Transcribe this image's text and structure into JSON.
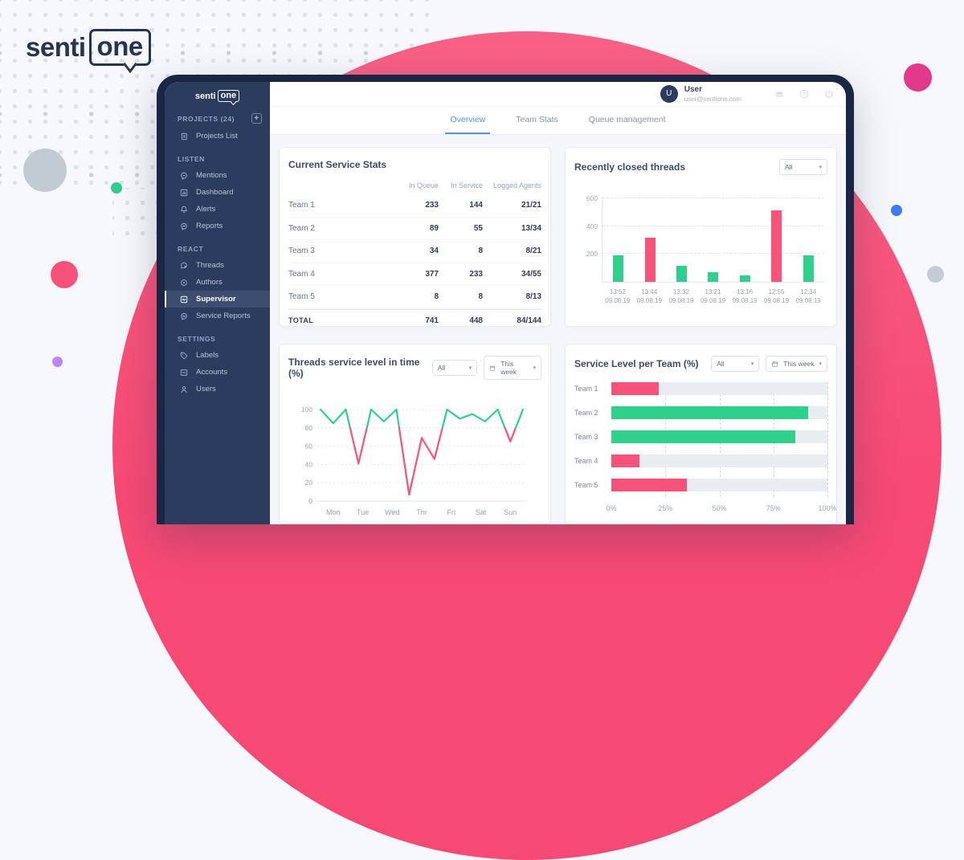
{
  "logo": {
    "senti": "senti",
    "one": "one"
  },
  "sidebar": {
    "projects_label": "PROJECTS (24)",
    "add_button": "+",
    "projects_list": "Projects List",
    "listen": "LISTEN",
    "mentions": "Mentions",
    "dashboard": "Dashboard",
    "alerts": "Alerts",
    "reports": "Reports",
    "react": "REACT",
    "threads": "Threads",
    "authors": "Authors",
    "supervisor": "Supervisor",
    "service_reports": "Service Reports",
    "settings": "SETTINGS",
    "labels": "Labels",
    "accounts": "Accounts",
    "users": "Users",
    "active_item": "Supervisor"
  },
  "userbar": {
    "initial": "U",
    "name": "User",
    "email": "user@sentione.com"
  },
  "tabs": {
    "overview": "Overview",
    "team_stats": "Team Stats",
    "queue": "Queue management",
    "active": "Overview"
  },
  "stats_card": {
    "title": "Current Service Stats",
    "columns": [
      "In Queue",
      "In Service",
      "Logged Agents"
    ],
    "rows": [
      {
        "name": "Team 1",
        "q": "233",
        "s": "144",
        "a": "21/21"
      },
      {
        "name": "Team 2",
        "q": "89",
        "s": "55",
        "a": "13/34"
      },
      {
        "name": "Team 3",
        "q": "34",
        "s": "8",
        "a": "8/21"
      },
      {
        "name": "Team 4",
        "q": "377",
        "s": "233",
        "a": "34/55"
      },
      {
        "name": "Team 5",
        "q": "8",
        "s": "8",
        "a": "8/13"
      },
      {
        "name": "TOTAL",
        "q": "741",
        "s": "448",
        "a": "84/144"
      }
    ]
  },
  "closed_card": {
    "title": "Recently closed threads",
    "filter": "All"
  },
  "level_time_card": {
    "title": "Threads service level in time (%)",
    "filter": "All",
    "range": "This week"
  },
  "level_team_card": {
    "title": "Service Level per Team (%)",
    "filter": "All",
    "range": "This week"
  },
  "colors": {
    "green": "#2fcf8e",
    "pink": "#f8527b",
    "accent_blue": "#5193e6",
    "navy": "#2c3c5f"
  },
  "chart_data": [
    {
      "type": "bar",
      "title": "Recently closed threads",
      "categories": [
        "13:52",
        "13:44",
        "13:32",
        "13:21",
        "13:16",
        "12:55",
        "12:34"
      ],
      "category_dates": [
        "09.08.19",
        "09.08.19",
        "09.08.19",
        "09.08.19",
        "09.08.19",
        "09.08.19",
        "09.08.19"
      ],
      "values": [
        190,
        320,
        115,
        70,
        45,
        515,
        190
      ],
      "bar_colors": [
        "green",
        "pink",
        "green",
        "green",
        "green",
        "pink",
        "green"
      ],
      "ylim": [
        0,
        620
      ],
      "yticks": [
        200,
        400,
        600
      ],
      "grid": "dashed-horizontal",
      "legend": "none"
    },
    {
      "type": "line",
      "title": "Threads service level in time (%)",
      "x_labels": [
        "Mon",
        "Tue",
        "Wed",
        "Thr",
        "Fri",
        "Sat",
        "Sun"
      ],
      "values": [
        100,
        85,
        100,
        41,
        100,
        87,
        100,
        7,
        69,
        46,
        100,
        90,
        95,
        87,
        100,
        65,
        100
      ],
      "threshold": 80,
      "color_above_threshold": "green",
      "color_below_threshold": "pink",
      "ylim": [
        0,
        100
      ],
      "yticks": [
        0,
        20,
        40,
        60,
        80,
        100
      ],
      "grid": "dashed-horizontal",
      "legend": "none"
    },
    {
      "type": "bar-horizontal",
      "title": "Service Level per Team (%)",
      "categories": [
        "Team 1",
        "Team 2",
        "Team 3",
        "Team 4",
        "Team 5"
      ],
      "values": [
        22,
        91,
        85,
        13,
        35
      ],
      "bar_colors": [
        "pink",
        "green",
        "green",
        "pink",
        "pink"
      ],
      "xlim": [
        0,
        100
      ],
      "xticks": [
        "0%",
        "25%",
        "50%",
        "75%",
        "100%"
      ],
      "grid": "dashed-vertical",
      "legend": "none"
    }
  ]
}
